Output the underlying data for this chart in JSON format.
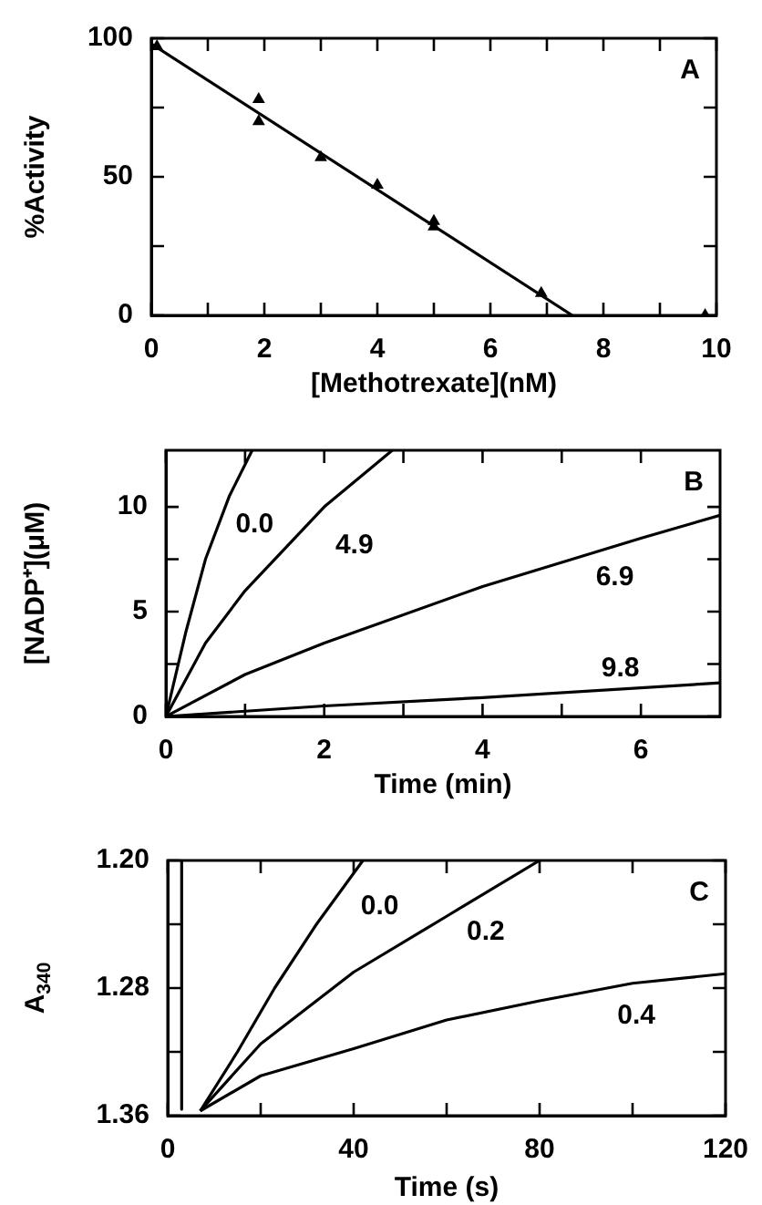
{
  "chart_data": [
    {
      "type": "scatter",
      "xlabel": "[Methotrexate](nM)",
      "ylabel": "%Activity",
      "xlim": [
        0,
        10
      ],
      "ylim": [
        0,
        100
      ],
      "xticks": [
        0,
        {
          "value": 1,
          "label": null
        },
        2,
        {
          "value": 3,
          "label": null
        },
        4,
        {
          "value": 5,
          "label": null
        },
        6,
        {
          "value": 7,
          "label": null
        },
        8,
        {
          "value": 9,
          "label": null
        },
        10
      ],
      "yticks": [
        0,
        {
          "value": 25,
          "label": null
        },
        50,
        {
          "value": 75,
          "label": null
        },
        100
      ],
      "marker": "triangle",
      "annotations": [
        "A"
      ],
      "series": [
        {
          "type": "scatter",
          "color": "#000000",
          "x": [
            0.1,
            1.9,
            1.9,
            3,
            4,
            5,
            5,
            6.9,
            9.8
          ],
          "values": [
            97,
            78,
            70,
            57,
            47,
            34,
            32,
            8,
            0
          ]
        },
        {
          "type": "line",
          "color": "#000000",
          "marker": "none",
          "x": [
            0,
            7.45
          ],
          "values": [
            98,
            0
          ]
        }
      ]
    },
    {
      "type": "line",
      "xlabel": "Time (min)",
      "ylabel": "[NADP⁺](μM)",
      "xlim": [
        0,
        7
      ],
      "ylim": [
        0,
        12.7
      ],
      "xticks": [
        0,
        {
          "value": 1,
          "label": null
        },
        2,
        {
          "value": 3,
          "label": null
        },
        4,
        {
          "value": 5,
          "label": null
        },
        6
      ],
      "yticks": [
        0,
        {
          "value": 2.5,
          "label": null
        },
        5,
        {
          "value": 7.5,
          "label": null
        },
        10
      ],
      "marker": "none",
      "annotations": [
        "B"
      ],
      "series": [
        {
          "name": "0.0",
          "color": "#000000",
          "x": [
            0,
            0.25,
            0.5,
            0.8,
            1.09
          ],
          "values": [
            0,
            4,
            7.5,
            10.5,
            12.7
          ]
        },
        {
          "name": "4.9",
          "color": "#000000",
          "x": [
            0,
            0.5,
            1,
            2,
            2.86
          ],
          "values": [
            0,
            3.5,
            6,
            10,
            12.7
          ]
        },
        {
          "name": "6.9",
          "color": "#000000",
          "x": [
            0,
            1,
            2,
            4,
            6,
            7
          ],
          "values": [
            0,
            2,
            3.5,
            6.2,
            8.5,
            9.6
          ]
        },
        {
          "name": "9.8",
          "color": "#000000",
          "x": [
            0,
            2,
            4,
            7
          ],
          "values": [
            0,
            0.5,
            0.9,
            1.6
          ]
        }
      ]
    },
    {
      "type": "line",
      "xlabel": "Time (s)",
      "ylabel": "A$_{340}$",
      "xlim": [
        0,
        120
      ],
      "ylim": [
        1.36,
        1.2
      ],
      "xticks": [
        0,
        {
          "value": 20,
          "label": null
        },
        40,
        {
          "value": 60,
          "label": null
        },
        80,
        {
          "value": 100,
          "label": null
        },
        120
      ],
      "yticks": [
        {
          "value": 1.36,
          "label": "1.36"
        },
        {
          "value": 1.32,
          "label": null
        },
        {
          "value": 1.28,
          "label": "1.28"
        },
        {
          "value": 1.24,
          "label": null
        },
        {
          "value": 1.2,
          "label": "1.20"
        }
      ],
      "marker": "none",
      "annotations": [
        "C"
      ],
      "series": [
        {
          "color": "#000000",
          "x": [
            3,
            3
          ],
          "values": [
            1.2,
            1.356
          ]
        },
        {
          "name": "0.0",
          "color": "#000000",
          "x": [
            7,
            15,
            23,
            32,
            42
          ],
          "values": [
            1.357,
            1.32,
            1.28,
            1.24,
            1.2
          ]
        },
        {
          "name": "0.2",
          "color": "#000000",
          "x": [
            7,
            20,
            40,
            60,
            80
          ],
          "values": [
            1.357,
            1.315,
            1.27,
            1.235,
            1.2
          ]
        },
        {
          "name": "0.4",
          "color": "#000000",
          "x": [
            7,
            20,
            40,
            60,
            80,
            100,
            120
          ],
          "values": [
            1.357,
            1.335,
            1.318,
            1.3,
            1.288,
            1.277,
            1.271
          ]
        }
      ]
    }
  ]
}
